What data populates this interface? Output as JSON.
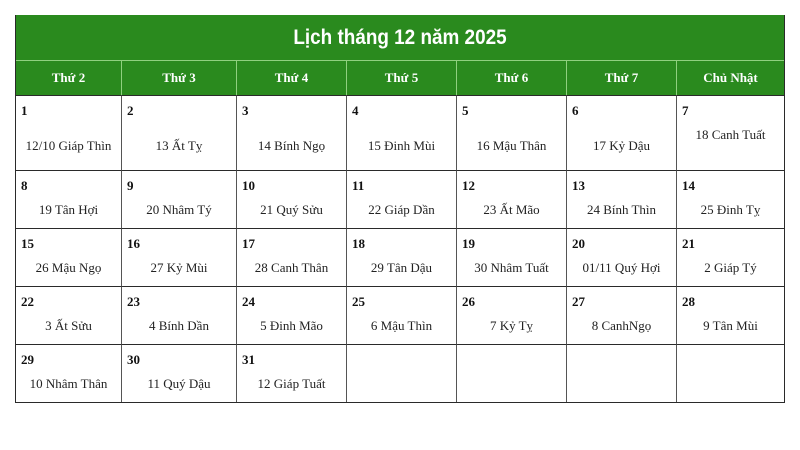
{
  "title": "Lịch tháng 12 năm 2025",
  "colors": {
    "header_bg": "#2a8a1e",
    "header_text": "#ffffff"
  },
  "weekdays": [
    "Thứ 2",
    "Thứ 3",
    "Thứ 4",
    "Thứ 5",
    "Thứ 6",
    "Thứ 7",
    "Chủ Nhật"
  ],
  "weeks": [
    [
      {
        "day": "1",
        "lunar": "12/10 Giáp Thìn"
      },
      {
        "day": "2",
        "lunar": "13 Ất Tỵ"
      },
      {
        "day": "3",
        "lunar": "14 Bính Ngọ"
      },
      {
        "day": "4",
        "lunar": "15 Đinh Mùi"
      },
      {
        "day": "5",
        "lunar": "16 Mậu Thân"
      },
      {
        "day": "6",
        "lunar": "17 Kỷ Dậu"
      },
      {
        "day": "7",
        "lunar": "18 Canh Tuất"
      }
    ],
    [
      {
        "day": "8",
        "lunar": "19 Tân Hợi"
      },
      {
        "day": "9",
        "lunar": "20 Nhâm Tý"
      },
      {
        "day": "10",
        "lunar": "21 Quý Sửu"
      },
      {
        "day": "11",
        "lunar": "22 Giáp Dần"
      },
      {
        "day": "12",
        "lunar": "23 Ất Mão"
      },
      {
        "day": "13",
        "lunar": "24 Bính Thìn"
      },
      {
        "day": "14",
        "lunar": "25 Đinh Tỵ"
      }
    ],
    [
      {
        "day": "15",
        "lunar": "26 Mậu Ngọ"
      },
      {
        "day": "16",
        "lunar": "27 Kỷ Mùi"
      },
      {
        "day": "17",
        "lunar": "28 Canh Thân"
      },
      {
        "day": "18",
        "lunar": "29 Tân Dậu"
      },
      {
        "day": "19",
        "lunar": "30 Nhâm Tuất"
      },
      {
        "day": "20",
        "lunar": "01/11 Quý Hợi"
      },
      {
        "day": "21",
        "lunar": "2  Giáp Tý"
      }
    ],
    [
      {
        "day": "22",
        "lunar": "3 Ất Sửu"
      },
      {
        "day": "23",
        "lunar": "4 Bính Dần"
      },
      {
        "day": "24",
        "lunar": "5 Đinh Mão"
      },
      {
        "day": "25",
        "lunar": "6 Mậu Thìn"
      },
      {
        "day": "26",
        "lunar": "7 Kỷ Tỵ"
      },
      {
        "day": "27",
        "lunar": "8 CanhNgọ"
      },
      {
        "day": "28",
        "lunar": "9 Tân Mùi"
      }
    ],
    [
      {
        "day": "29",
        "lunar": "10 Nhâm Thân"
      },
      {
        "day": "30",
        "lunar": "11 Quý Dậu"
      },
      {
        "day": "31",
        "lunar": "12 Giáp Tuất"
      },
      null,
      null,
      null,
      null
    ]
  ]
}
